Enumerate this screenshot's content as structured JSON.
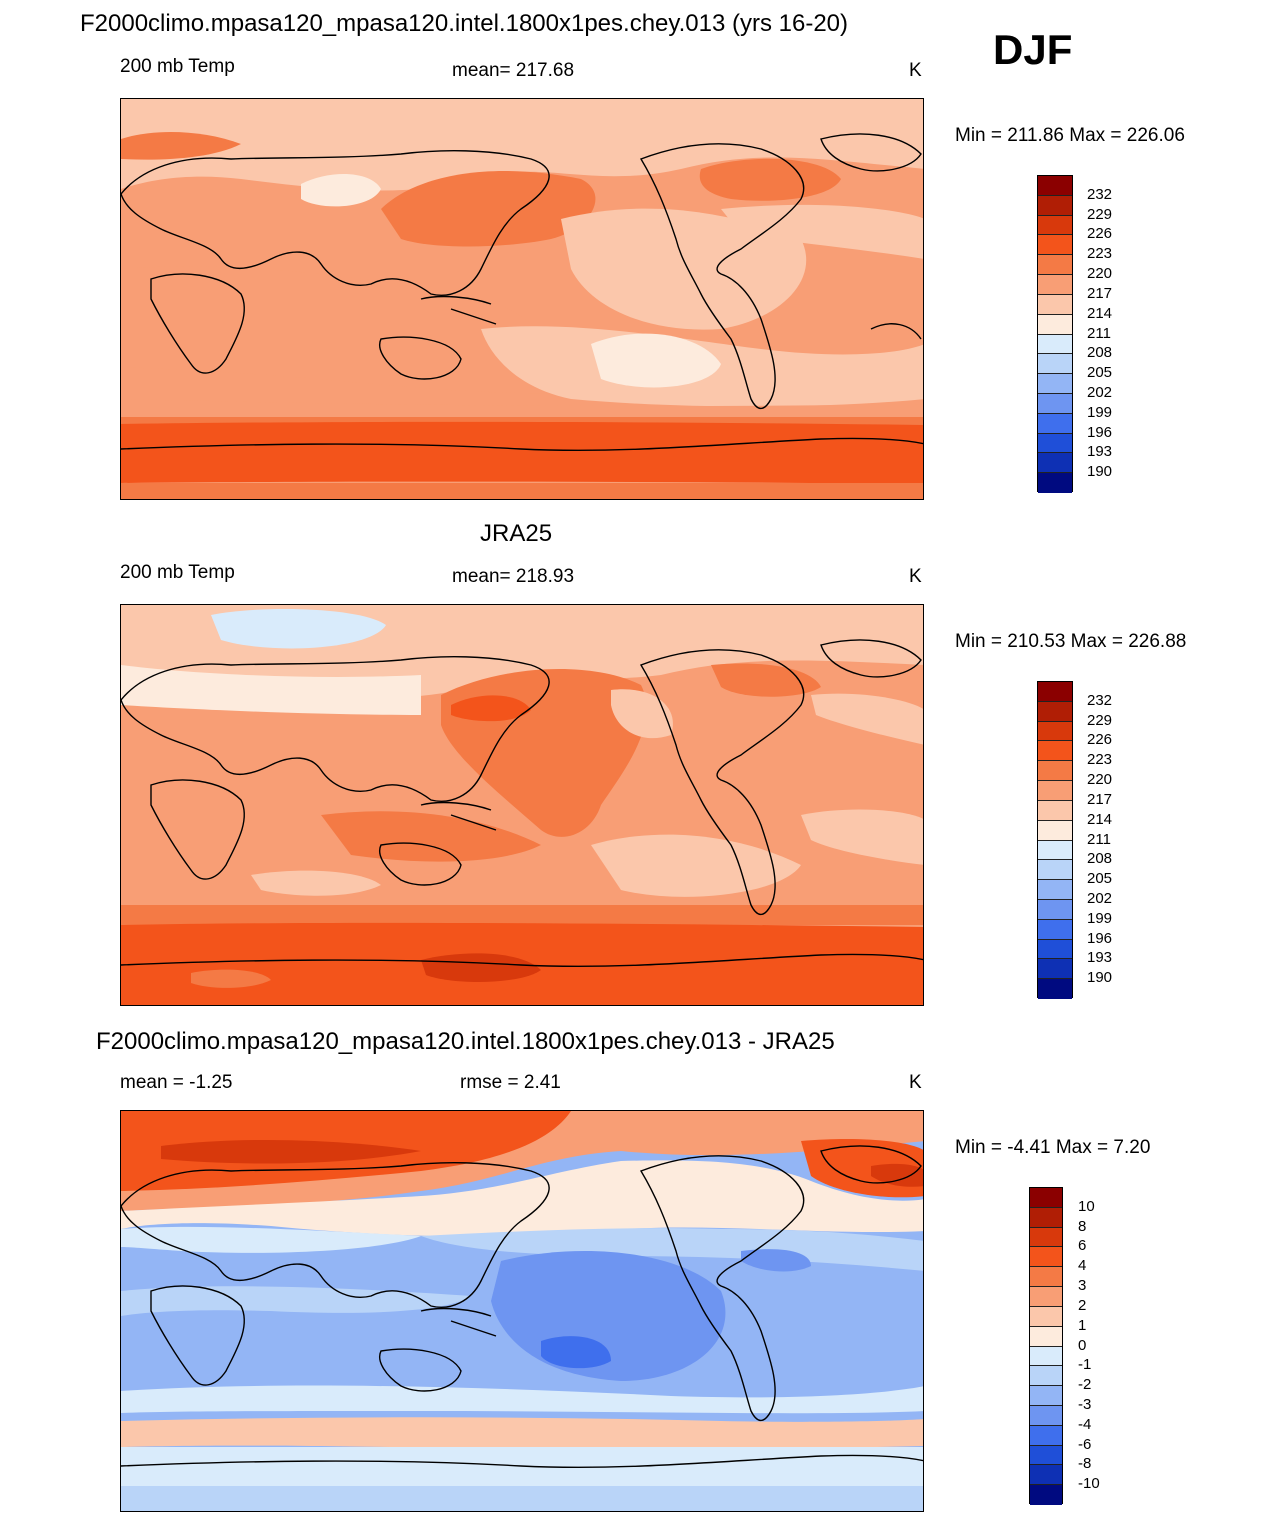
{
  "season": "DJF",
  "panels": [
    {
      "title": "F2000climo.mpasa120_mpasa120.intel.1800x1pes.chey.013 (yrs 16-20)",
      "left_label": "200 mb Temp",
      "center_label": "mean= 217.68",
      "units": "K",
      "minmax": "Min = 211.86 Max = 226.06",
      "field": "model"
    },
    {
      "title": "JRA25",
      "left_label": "200 mb Temp",
      "center_label": "mean= 218.93",
      "units": "K",
      "minmax": "Min = 210.53 Max = 226.88",
      "field": "obs"
    },
    {
      "title": "F2000climo.mpasa120_mpasa120.intel.1800x1pes.chey.013 - JRA25",
      "left_label": "mean =  -1.25",
      "center_label": "rmse =   2.41",
      "units": "K",
      "minmax": "Min =  -4.41 Max =   7.20",
      "field": "diff"
    }
  ],
  "legends": {
    "temperature": {
      "labels": [
        "232",
        "229",
        "226",
        "223",
        "220",
        "217",
        "214",
        "211",
        "208",
        "205",
        "202",
        "199",
        "196",
        "193",
        "190"
      ],
      "colors": [
        "#8b0000",
        "#b01e05",
        "#d8390c",
        "#f3541b",
        "#f47a45",
        "#f89e75",
        "#fbc7ab",
        "#fdebdd",
        "#d9ebfb",
        "#b9d4f8",
        "#93b5f5",
        "#6e95f1",
        "#3f6fed",
        "#1f4fd8",
        "#0e30b4",
        "#000a80"
      ]
    },
    "difference": {
      "labels": [
        "10",
        "8",
        "6",
        "4",
        "3",
        "2",
        "1",
        "0",
        "-1",
        "-2",
        "-3",
        "-4",
        "-6",
        "-8",
        "-10"
      ],
      "colors": [
        "#8b0000",
        "#b01e05",
        "#d8390c",
        "#f3541b",
        "#f47a45",
        "#f89e75",
        "#fbc7ab",
        "#fdebdd",
        "#d9ebfb",
        "#b9d4f8",
        "#93b5f5",
        "#6e95f1",
        "#3f6fed",
        "#1f4fd8",
        "#0e30b4",
        "#000a80"
      ]
    }
  }
}
